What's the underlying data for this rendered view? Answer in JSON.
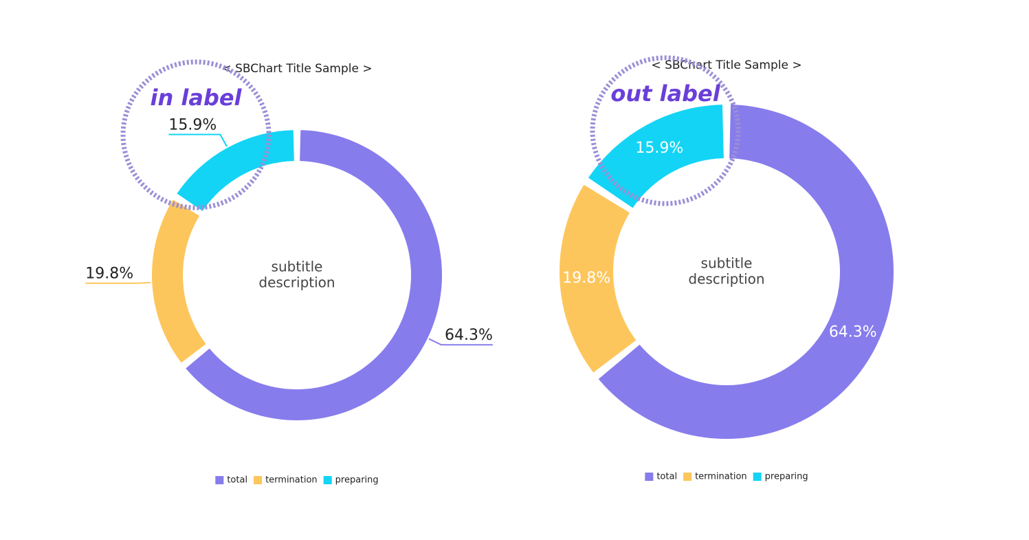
{
  "chart_data": [
    {
      "type": "pie",
      "title": "< SBChart Title Sample >",
      "center_text": [
        "subtitle",
        "description"
      ],
      "categories": [
        "total",
        "termination",
        "preparing"
      ],
      "values": [
        64.3,
        19.8,
        15.9
      ],
      "value_labels": [
        "64.3%",
        "19.8%",
        "15.9%"
      ],
      "colors": [
        "#877cec",
        "#fdc65c",
        "#13d4f5"
      ],
      "label_position": "outside",
      "annotation": "in label"
    },
    {
      "type": "pie",
      "title": "< SBChart Title Sample >",
      "center_text": [
        "subtitle",
        "description"
      ],
      "categories": [
        "total",
        "termination",
        "preparing"
      ],
      "values": [
        64.3,
        19.8,
        15.9
      ],
      "value_labels": [
        "64.3%",
        "19.8%",
        "15.9%"
      ],
      "colors": [
        "#877cec",
        "#fdc65c",
        "#13d4f5"
      ],
      "label_position": "inside",
      "annotation": "out label"
    }
  ]
}
